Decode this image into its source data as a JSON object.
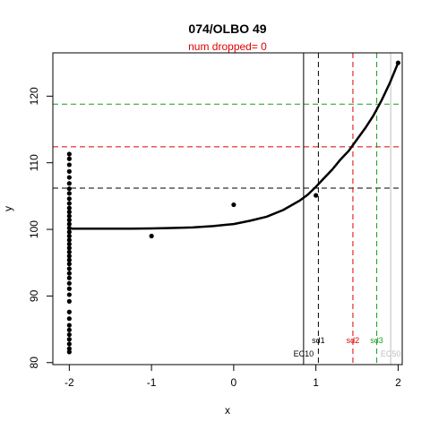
{
  "chart_data": {
    "type": "scatter",
    "title": "074/OLBO 49",
    "subtitle": "num dropped= 0",
    "xlabel": "x",
    "ylabel": "y",
    "xlim": [
      -2.2,
      2.05
    ],
    "ylim": [
      79.7,
      126.5
    ],
    "x_ticks": [
      -2,
      -1,
      0,
      1,
      2
    ],
    "y_ticks": [
      80,
      90,
      100,
      110,
      120
    ],
    "grid": false,
    "colors": {
      "title": "#000000",
      "subtitle": "#e00000",
      "points": "#000000",
      "curve": "#000000",
      "black_dashed": "#000000",
      "red_dashed": "#e00000",
      "green_dashed": "#1a9e1a",
      "ec10_line": "#000000",
      "ec50_line": "#bfbfbf"
    },
    "points": [
      {
        "x": -2,
        "y": 111.3
      },
      {
        "x": -2,
        "y": 110.6
      },
      {
        "x": -2,
        "y": 109.7
      },
      {
        "x": -2,
        "y": 108.7
      },
      {
        "x": -2,
        "y": 107.8
      },
      {
        "x": -2,
        "y": 106.9
      },
      {
        "x": -2,
        "y": 106.1
      },
      {
        "x": -2,
        "y": 105.4
      },
      {
        "x": -2,
        "y": 104.6
      },
      {
        "x": -2,
        "y": 103.9
      },
      {
        "x": -2,
        "y": 103.2
      },
      {
        "x": -2,
        "y": 102.6
      },
      {
        "x": -2,
        "y": 102.0
      },
      {
        "x": -2,
        "y": 101.4
      },
      {
        "x": -2,
        "y": 100.8
      },
      {
        "x": -2,
        "y": 100.2
      },
      {
        "x": -2,
        "y": 99.6
      },
      {
        "x": -2,
        "y": 99.0
      },
      {
        "x": -2,
        "y": 98.4
      },
      {
        "x": -2,
        "y": 97.8
      },
      {
        "x": -2,
        "y": 97.2
      },
      {
        "x": -2,
        "y": 96.6
      },
      {
        "x": -2,
        "y": 96.0
      },
      {
        "x": -2,
        "y": 95.4
      },
      {
        "x": -2,
        "y": 94.8
      },
      {
        "x": -2,
        "y": 94.1
      },
      {
        "x": -2,
        "y": 93.4
      },
      {
        "x": -2,
        "y": 92.7
      },
      {
        "x": -2,
        "y": 91.9
      },
      {
        "x": -2,
        "y": 91.1
      },
      {
        "x": -2,
        "y": 90.2
      },
      {
        "x": -2,
        "y": 89.2
      },
      {
        "x": -2,
        "y": 87.6
      },
      {
        "x": -2,
        "y": 86.6
      },
      {
        "x": -2,
        "y": 85.6
      },
      {
        "x": -2,
        "y": 84.9
      },
      {
        "x": -2,
        "y": 84.2
      },
      {
        "x": -2,
        "y": 83.5
      },
      {
        "x": -2,
        "y": 82.8
      },
      {
        "x": -2,
        "y": 82.1
      },
      {
        "x": -2,
        "y": 81.6
      },
      {
        "x": -1,
        "y": 99.0
      },
      {
        "x": 0,
        "y": 103.7
      },
      {
        "x": 1,
        "y": 105.1
      },
      {
        "x": 2,
        "y": 125.0
      }
    ],
    "curve": [
      {
        "x": -2.0,
        "y": 100.1
      },
      {
        "x": -1.75,
        "y": 100.1
      },
      {
        "x": -1.5,
        "y": 100.1
      },
      {
        "x": -1.25,
        "y": 100.1
      },
      {
        "x": -1.0,
        "y": 100.15
      },
      {
        "x": -0.75,
        "y": 100.2
      },
      {
        "x": -0.5,
        "y": 100.3
      },
      {
        "x": -0.25,
        "y": 100.5
      },
      {
        "x": 0.0,
        "y": 100.8
      },
      {
        "x": 0.2,
        "y": 101.3
      },
      {
        "x": 0.4,
        "y": 101.9
      },
      {
        "x": 0.6,
        "y": 102.9
      },
      {
        "x": 0.8,
        "y": 104.3
      },
      {
        "x": 0.9,
        "y": 105.2
      },
      {
        "x": 1.0,
        "y": 106.4
      },
      {
        "x": 1.1,
        "y": 107.7
      },
      {
        "x": 1.2,
        "y": 109.0
      },
      {
        "x": 1.3,
        "y": 110.5
      },
      {
        "x": 1.4,
        "y": 111.8
      },
      {
        "x": 1.5,
        "y": 113.5
      },
      {
        "x": 1.6,
        "y": 115.2
      },
      {
        "x": 1.7,
        "y": 117.1
      },
      {
        "x": 1.8,
        "y": 119.4
      },
      {
        "x": 1.9,
        "y": 122.0
      },
      {
        "x": 2.0,
        "y": 125.0
      }
    ],
    "hlines": [
      {
        "y": 106.2,
        "color": "black_dashed",
        "dashed": true
      },
      {
        "y": 112.4,
        "color": "red_dashed",
        "dashed": true
      },
      {
        "y": 118.8,
        "color": "green_dashed",
        "dashed": true
      }
    ],
    "vlines": [
      {
        "x": 0.85,
        "color": "ec10_line",
        "dashed": false,
        "label": "EC10"
      },
      {
        "x": 1.03,
        "color": "black_dashed",
        "dashed": true,
        "label": "sd1"
      },
      {
        "x": 1.45,
        "color": "red_dashed",
        "dashed": true,
        "label": "sd2"
      },
      {
        "x": 1.74,
        "color": "green_dashed",
        "dashed": true,
        "label": "sd3"
      },
      {
        "x": 1.91,
        "color": "ec50_line",
        "dashed": false,
        "label": "EC50"
      }
    ]
  }
}
